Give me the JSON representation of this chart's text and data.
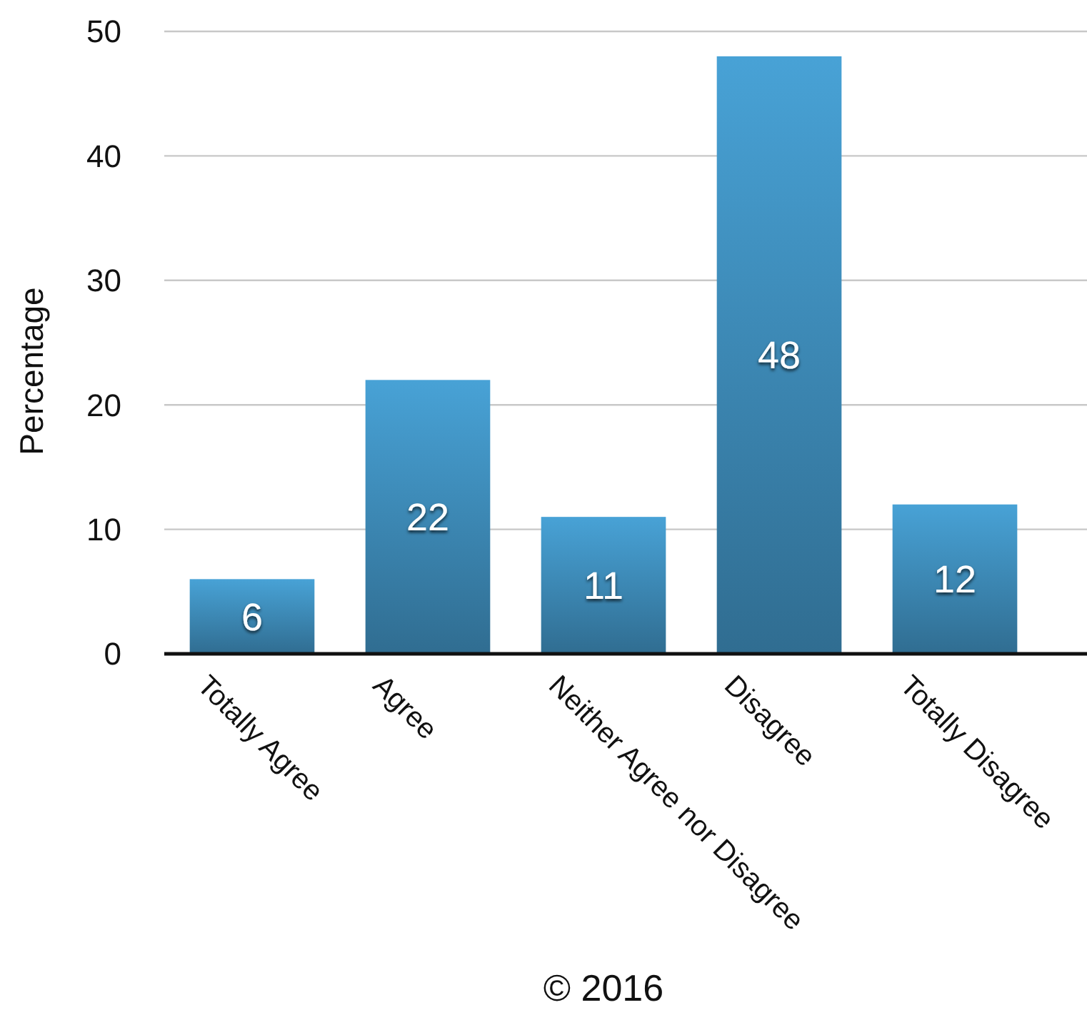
{
  "chart_data": {
    "type": "bar",
    "categories": [
      "Totally Agree",
      "Agree",
      "Neither Agree nor Disagree",
      "Disagree",
      "Totally Disagree"
    ],
    "values": [
      6,
      22,
      11,
      48,
      12
    ],
    "color": "#3b85b0",
    "ylabel": "Percentage",
    "ylim": [
      0,
      50
    ],
    "yticks": [
      0,
      10,
      20,
      30,
      40,
      50
    ],
    "grid": "y",
    "data_labels": true,
    "annotations": [
      "© 2016"
    ]
  }
}
